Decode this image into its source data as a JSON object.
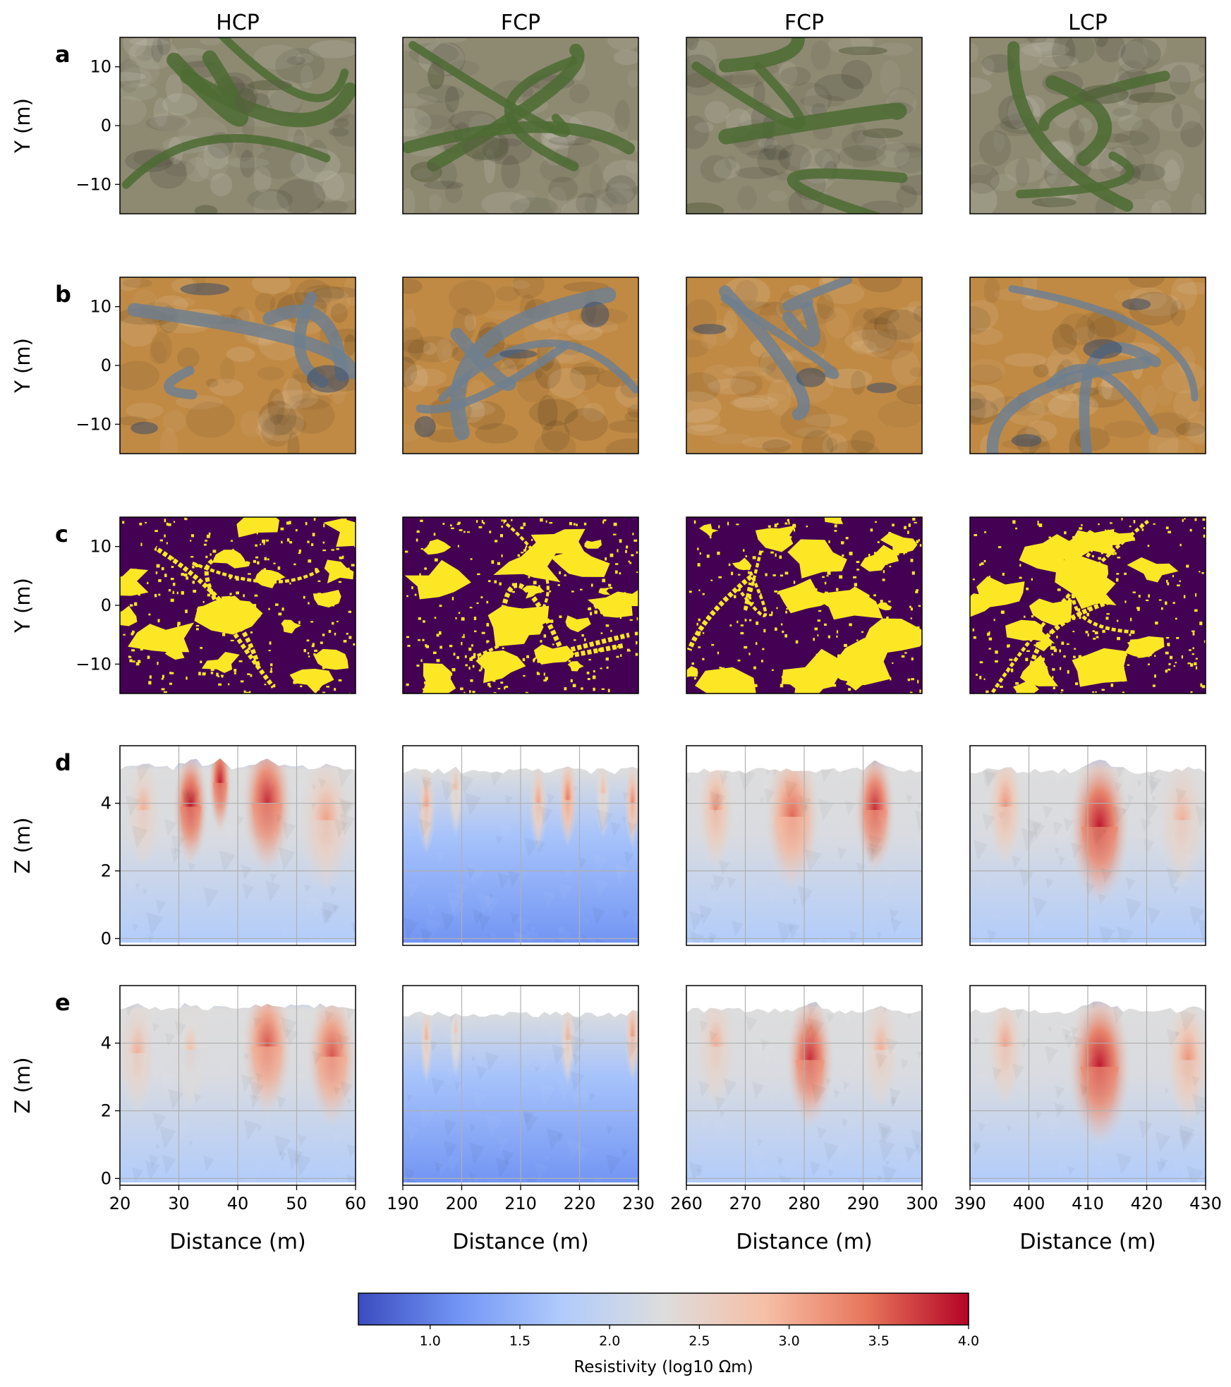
{
  "columns": [
    "HCP",
    "FCP",
    "FCP",
    "LCP"
  ],
  "rows": [
    {
      "label": "a",
      "kind": "image",
      "ylabel": "Y (m)",
      "yticks": [
        10,
        0,
        -10
      ],
      "ylim": [
        -15,
        15
      ]
    },
    {
      "label": "b",
      "kind": "image",
      "ylabel": "Y (m)",
      "yticks": [
        10,
        0,
        -10
      ],
      "ylim": [
        -15,
        15
      ]
    },
    {
      "label": "c",
      "kind": "image",
      "ylabel": "Y (m)",
      "yticks": [
        10,
        0,
        -10
      ],
      "ylim": [
        -15,
        15
      ]
    },
    {
      "label": "d",
      "kind": "profile",
      "ylabel": "Z (m)",
      "yticks": [
        4,
        2,
        0
      ],
      "ylim": [
        -0.2,
        5.7
      ]
    },
    {
      "label": "e",
      "kind": "profile",
      "ylabel": "Z (m)",
      "yticks": [
        4,
        2,
        0
      ],
      "ylim": [
        -0.2,
        5.7
      ]
    }
  ],
  "image_palettes": {
    "a": {
      "base": "#8e8a72",
      "features": "#4c6b32",
      "dark": "#5a5f40"
    },
    "b": {
      "base": "#c08a45",
      "features": "#6f7f8f",
      "dark": "#3a4c6a"
    },
    "c": {
      "base": "#440154",
      "features": "#fde725"
    }
  },
  "chart_data": {
    "type": "heatmap",
    "xlabel": "Distance (m)",
    "panels": [
      {
        "column": "HCP",
        "xlim": [
          20,
          60
        ],
        "xticks": [
          20,
          30,
          40,
          50,
          60
        ]
      },
      {
        "column": "FCP",
        "xlim": [
          190,
          230
        ],
        "xticks": [
          190,
          200,
          210,
          220,
          230
        ]
      },
      {
        "column": "FCP",
        "xlim": [
          260,
          300
        ],
        "xticks": [
          260,
          270,
          280,
          290,
          300
        ]
      },
      {
        "column": "LCP",
        "xlim": [
          390,
          430
        ],
        "xticks": [
          390,
          400,
          410,
          420,
          430
        ]
      }
    ],
    "colorbar": {
      "label": "Resistivity (log10 Ωm)",
      "range": [
        0.6,
        4.0
      ],
      "ticks": [
        "1.0",
        "1.5",
        "2.0",
        "2.5",
        "3.0",
        "3.5",
        "4.0"
      ],
      "colormap": "coolwarm",
      "colors": [
        "#3b4cc0",
        "#7396f5",
        "#b0cbfc",
        "#dddddd",
        "#f6bfa6",
        "#e7755b",
        "#b40426"
      ]
    },
    "profiles": [
      {
        "row": "d",
        "column": 0,
        "surface": 5.05,
        "highs": [
          [
            24,
            3.8,
            3.0,
            1.3
          ],
          [
            32,
            3.9,
            3.9,
            1.4
          ],
          [
            37,
            4.6,
            3.9,
            0.9
          ],
          [
            45,
            4.0,
            3.8,
            2.0
          ],
          [
            55,
            3.5,
            3.1,
            2.0
          ]
        ]
      },
      {
        "row": "d",
        "column": 1,
        "surface": 4.95,
        "highs": [
          [
            194,
            3.9,
            3.1,
            0.7
          ],
          [
            199,
            4.4,
            2.9,
            0.6
          ],
          [
            213,
            4.0,
            3.1,
            0.7
          ],
          [
            218,
            4.1,
            3.4,
            0.7
          ],
          [
            224,
            4.3,
            2.9,
            0.6
          ],
          [
            229,
            4.0,
            3.3,
            0.6
          ]
        ]
      },
      {
        "row": "d",
        "column": 2,
        "surface": 4.95,
        "highs": [
          [
            265,
            3.8,
            3.2,
            1.4
          ],
          [
            278,
            3.6,
            3.5,
            2.2
          ],
          [
            292,
            3.8,
            3.8,
            1.6
          ]
        ]
      },
      {
        "row": "d",
        "column": 3,
        "surface": 4.95,
        "highs": [
          [
            396,
            3.9,
            3.2,
            1.4
          ],
          [
            412,
            3.3,
            3.9,
            2.4
          ],
          [
            426,
            3.5,
            3.0,
            1.8
          ]
        ]
      },
      {
        "row": "e",
        "column": 0,
        "surface": 5.05,
        "highs": [
          [
            23,
            3.7,
            3.0,
            1.4
          ],
          [
            32,
            3.8,
            2.8,
            1.4
          ],
          [
            45,
            3.9,
            3.6,
            2.0
          ],
          [
            56,
            3.6,
            3.6,
            2.0
          ]
        ]
      },
      {
        "row": "e",
        "column": 1,
        "surface": 4.85,
        "highs": [
          [
            194,
            4.1,
            3.0,
            0.5
          ],
          [
            199,
            4.3,
            2.8,
            0.5
          ],
          [
            218,
            4.1,
            3.0,
            0.6
          ],
          [
            229,
            4.2,
            3.2,
            0.6
          ]
        ]
      },
      {
        "row": "e",
        "column": 2,
        "surface": 4.95,
        "highs": [
          [
            265,
            3.9,
            3.0,
            1.5
          ],
          [
            281,
            3.5,
            3.8,
            1.9
          ],
          [
            293,
            3.8,
            3.0,
            1.4
          ]
        ]
      },
      {
        "row": "e",
        "column": 3,
        "surface": 4.95,
        "highs": [
          [
            396,
            3.9,
            3.1,
            1.4
          ],
          [
            412,
            3.3,
            3.9,
            2.5
          ],
          [
            427,
            3.5,
            3.2,
            1.7
          ]
        ]
      }
    ]
  }
}
